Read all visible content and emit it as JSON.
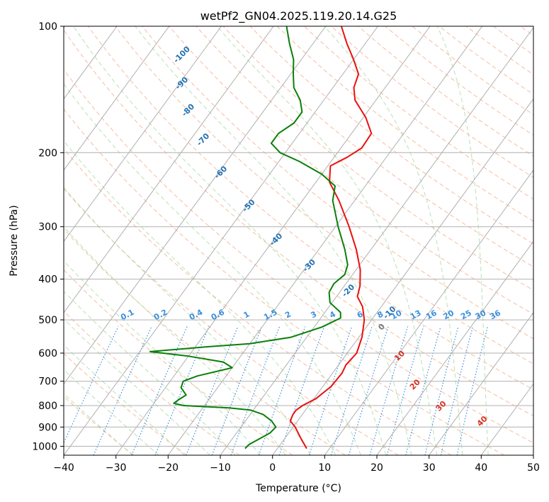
{
  "chart_data": {
    "type": "line",
    "diagram": "skew-t log-p",
    "title": "wetPf2_GN04.2025.119.20.14.G25",
    "xlabel": "Temperature (°C)",
    "ylabel": "Pressure (hPa)",
    "xlim": [
      -40,
      50
    ],
    "ylim": [
      1050,
      100
    ],
    "y_scale": "log",
    "x_ticks": [
      -40,
      -30,
      -20,
      -10,
      0,
      10,
      20,
      30,
      40,
      50
    ],
    "y_ticks": [
      100,
      200,
      300,
      400,
      500,
      600,
      700,
      800,
      900,
      1000
    ],
    "grid": true,
    "colors": {
      "temperature": "#e8110f",
      "dewpoint": "#0a7f0a",
      "isotherm": "#b0b0b0",
      "dry_adiabat": "#f4a582",
      "moist_adiabat": "#a6d9a0",
      "mixing_ratio": "#3a8fdc",
      "theta_label": "#2372b5",
      "moist_label": "#d7301f"
    },
    "series": [
      {
        "name": "Temperature",
        "points": [
          {
            "p": 1012,
            "t": 5.6
          },
          {
            "p": 960,
            "t": 3.2
          },
          {
            "p": 900,
            "t": 0.4
          },
          {
            "p": 870,
            "t": -1.4
          },
          {
            "p": 840,
            "t": -1.8
          },
          {
            "p": 820,
            "t": -1.8
          },
          {
            "p": 800,
            "t": -1.2
          },
          {
            "p": 770,
            "t": 0.4
          },
          {
            "p": 720,
            "t": 1.6
          },
          {
            "p": 670,
            "t": 1.8
          },
          {
            "p": 640,
            "t": 1.4
          },
          {
            "p": 600,
            "t": 1.8
          },
          {
            "p": 550,
            "t": 0.6
          },
          {
            "p": 500,
            "t": -1.4
          },
          {
            "p": 465,
            "t": -3.6
          },
          {
            "p": 440,
            "t": -6.0
          },
          {
            "p": 415,
            "t": -7.0
          },
          {
            "p": 380,
            "t": -9.2
          },
          {
            "p": 340,
            "t": -12.8
          },
          {
            "p": 300,
            "t": -17.4
          },
          {
            "p": 260,
            "t": -23.0
          },
          {
            "p": 235,
            "t": -27.4
          },
          {
            "p": 215,
            "t": -29.5
          },
          {
            "p": 205,
            "t": -27.5
          },
          {
            "p": 195,
            "t": -26.0
          },
          {
            "p": 180,
            "t": -26.2
          },
          {
            "p": 165,
            "t": -29.5
          },
          {
            "p": 150,
            "t": -34.0
          },
          {
            "p": 140,
            "t": -36.0
          },
          {
            "p": 130,
            "t": -37.0
          },
          {
            "p": 120,
            "t": -40.0
          },
          {
            "p": 110,
            "t": -43.5
          },
          {
            "p": 100,
            "t": -47.0
          }
        ]
      },
      {
        "name": "Dewpoint",
        "points": [
          {
            "p": 1012,
            "t": -6.2
          },
          {
            "p": 990,
            "t": -6.0
          },
          {
            "p": 960,
            "t": -4.8
          },
          {
            "p": 930,
            "t": -3.6
          },
          {
            "p": 900,
            "t": -3.3
          },
          {
            "p": 870,
            "t": -5.0
          },
          {
            "p": 840,
            "t": -7.5
          },
          {
            "p": 820,
            "t": -10.5
          },
          {
            "p": 810,
            "t": -15.0
          },
          {
            "p": 800,
            "t": -24.0
          },
          {
            "p": 790,
            "t": -26.2
          },
          {
            "p": 775,
            "t": -25.8
          },
          {
            "p": 755,
            "t": -25.0
          },
          {
            "p": 725,
            "t": -27.0
          },
          {
            "p": 700,
            "t": -27.5
          },
          {
            "p": 680,
            "t": -25.5
          },
          {
            "p": 650,
            "t": -20.0
          },
          {
            "p": 630,
            "t": -22.5
          },
          {
            "p": 610,
            "t": -30.0
          },
          {
            "p": 595,
            "t": -38.0
          },
          {
            "p": 580,
            "t": -28.0
          },
          {
            "p": 570,
            "t": -20.0
          },
          {
            "p": 550,
            "t": -13.0
          },
          {
            "p": 520,
            "t": -8.5
          },
          {
            "p": 495,
            "t": -6.2
          },
          {
            "p": 480,
            "t": -7.0
          },
          {
            "p": 455,
            "t": -10.4
          },
          {
            "p": 430,
            "t": -12.0
          },
          {
            "p": 410,
            "t": -12.3
          },
          {
            "p": 390,
            "t": -11.5
          },
          {
            "p": 370,
            "t": -12.3
          },
          {
            "p": 340,
            "t": -15.0
          },
          {
            "p": 300,
            "t": -19.5
          },
          {
            "p": 260,
            "t": -24.2
          },
          {
            "p": 240,
            "t": -25.8
          },
          {
            "p": 225,
            "t": -30.0
          },
          {
            "p": 210,
            "t": -36.0
          },
          {
            "p": 200,
            "t": -41.0
          },
          {
            "p": 190,
            "t": -44.0
          },
          {
            "p": 180,
            "t": -44.0
          },
          {
            "p": 170,
            "t": -42.5
          },
          {
            "p": 160,
            "t": -42.5
          },
          {
            "p": 150,
            "t": -44.5
          },
          {
            "p": 140,
            "t": -47.5
          },
          {
            "p": 130,
            "t": -49.5
          },
          {
            "p": 120,
            "t": -51.5
          },
          {
            "p": 110,
            "t": -54.5
          },
          {
            "p": 100,
            "t": -57.5
          }
        ]
      }
    ],
    "annotations": {
      "theta_labels": [
        {
          "text": "-100",
          "t": -73,
          "p": 118
        },
        {
          "text": "-90",
          "t": -69,
          "p": 138
        },
        {
          "text": "-80",
          "t": -64,
          "p": 160
        },
        {
          "text": "-70",
          "t": -57,
          "p": 188
        },
        {
          "text": "-60",
          "t": -49,
          "p": 225
        },
        {
          "text": "-50",
          "t": -39,
          "p": 270
        },
        {
          "text": "-40",
          "t": -29,
          "p": 325
        },
        {
          "text": "-30",
          "t": -19,
          "p": 375
        },
        {
          "text": "-20",
          "t": -8,
          "p": 430
        },
        {
          "text": "-10",
          "t": 3,
          "p": 485
        }
      ],
      "mixing_ratio_labels": [
        "0.1",
        "0.2",
        "0.4",
        "0.6",
        "1",
        "1.5",
        "2",
        "3",
        "4",
        "6",
        "8",
        "10",
        "13",
        "16",
        "20",
        "25",
        "30",
        "36"
      ],
      "moist_labels": [
        {
          "text": "0",
          "t": 3.5,
          "p": 525
        },
        {
          "text": "10",
          "t": 11,
          "p": 615
        },
        {
          "text": "20",
          "t": 18,
          "p": 720
        },
        {
          "text": "30",
          "t": 26,
          "p": 810
        },
        {
          "text": "40",
          "t": 36,
          "p": 880
        }
      ]
    }
  }
}
